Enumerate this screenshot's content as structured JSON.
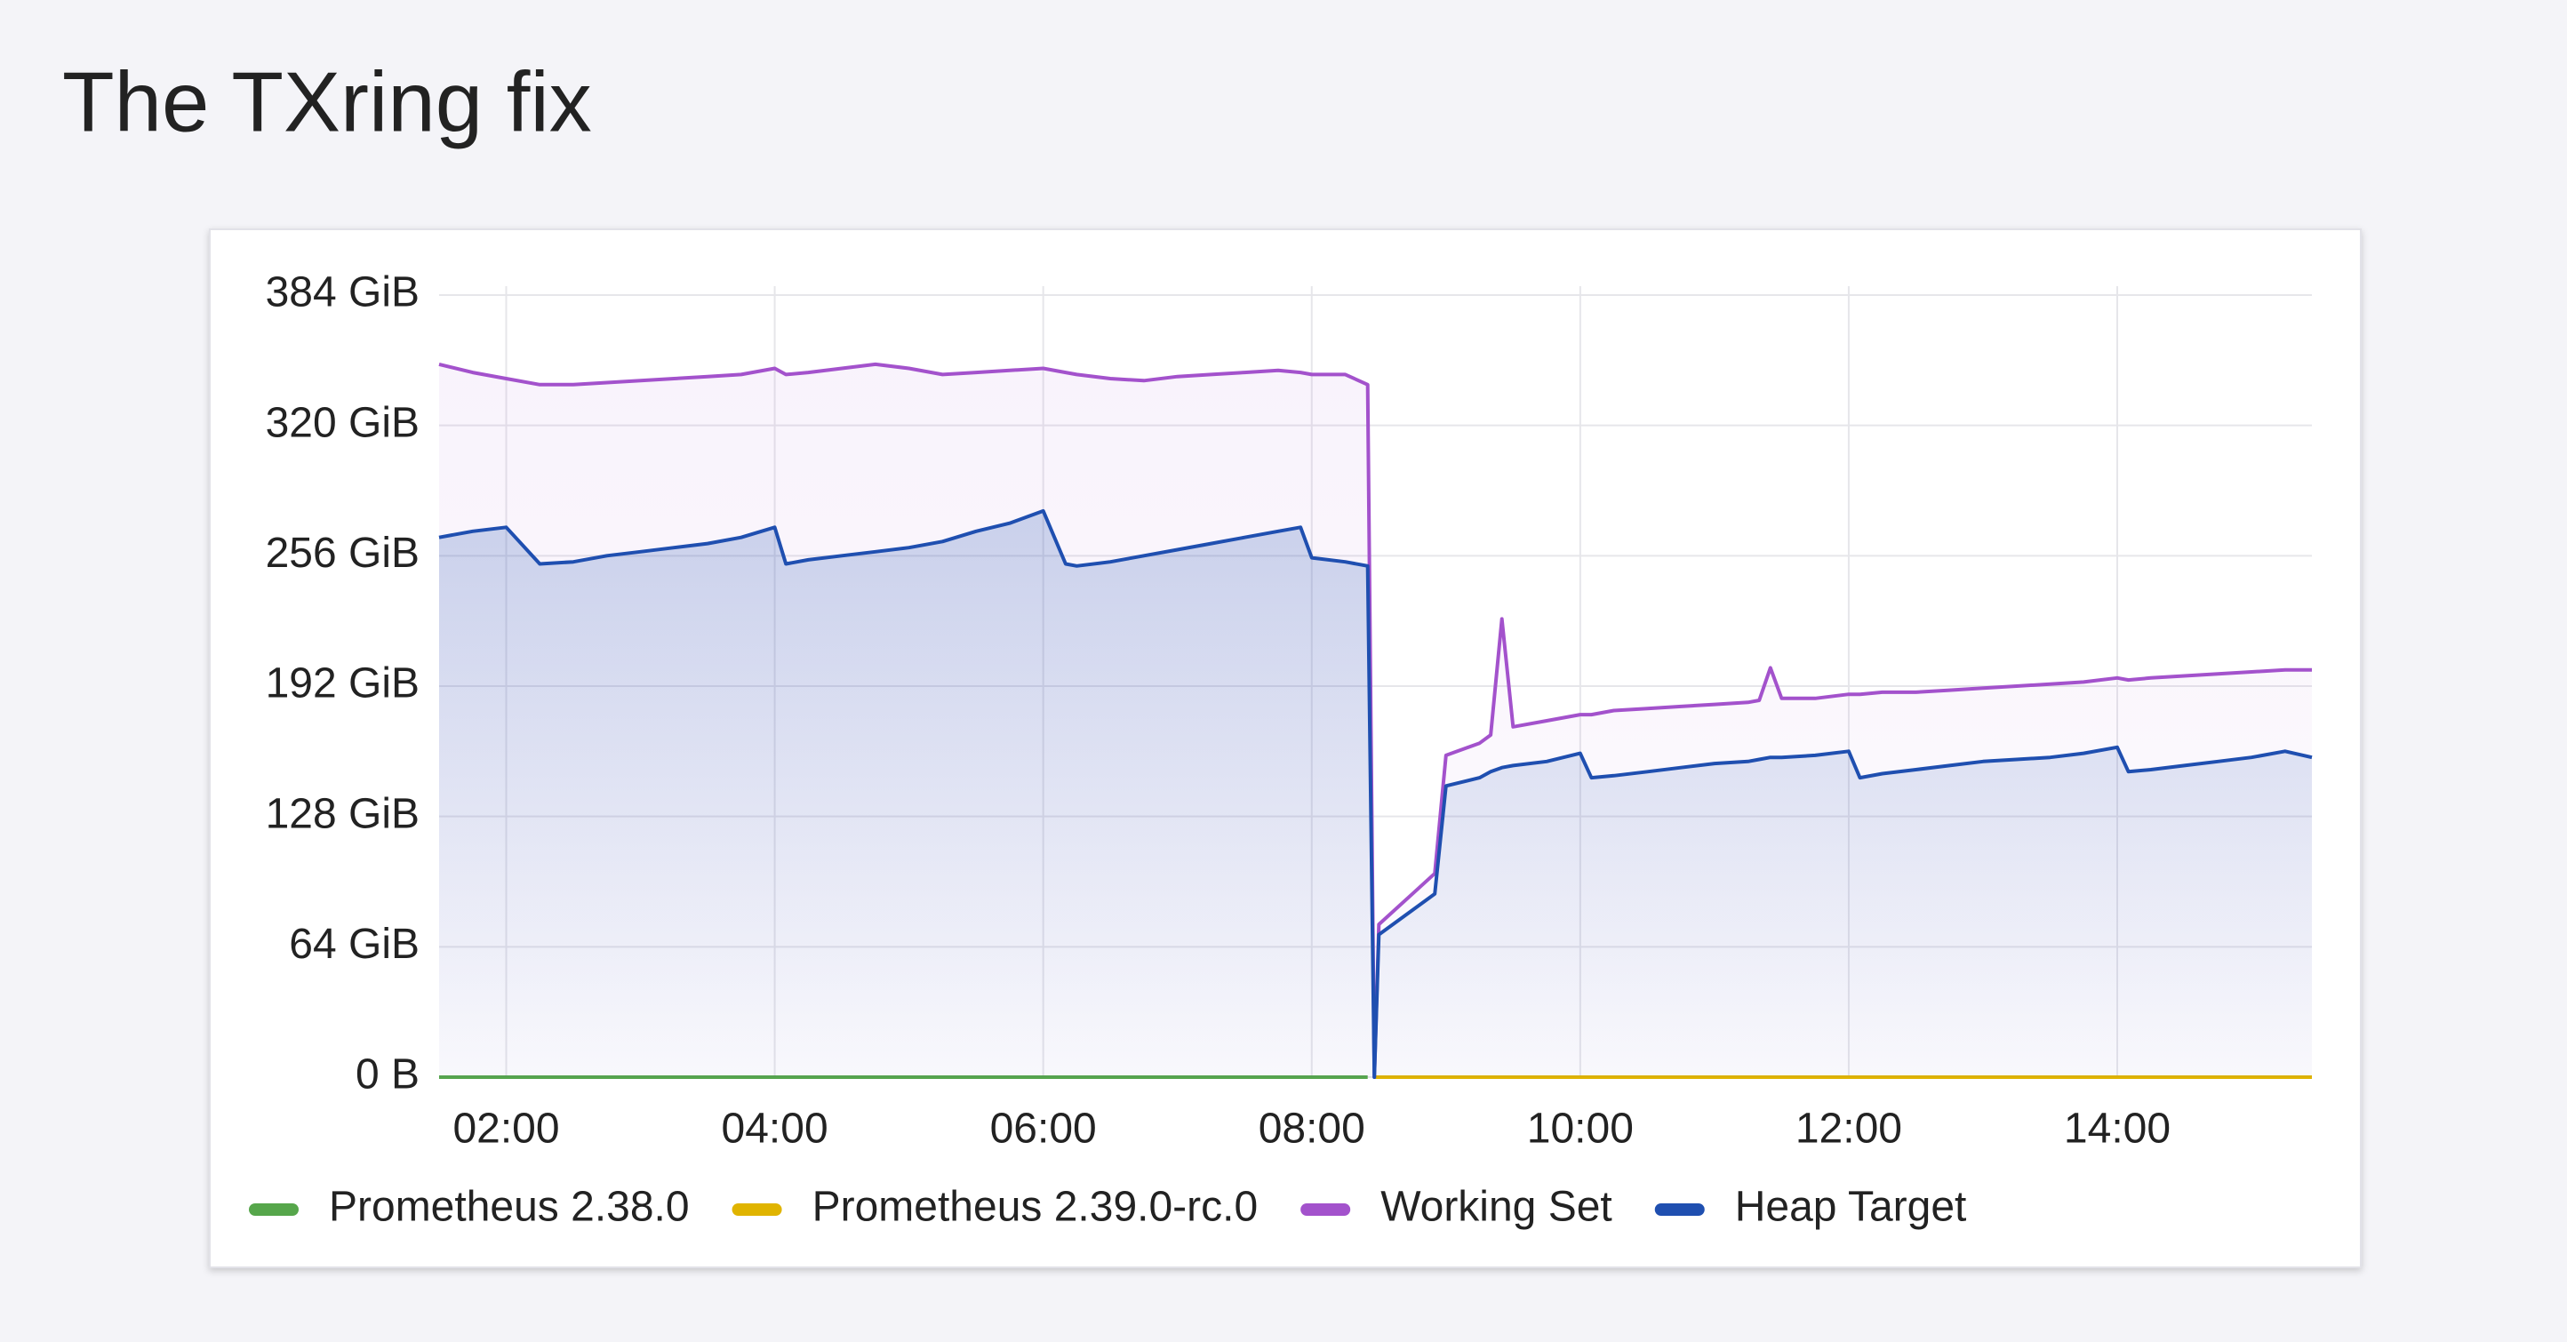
{
  "chart_data": {
    "type": "line",
    "title": "The TXring fix",
    "x": [
      "01:30",
      "01:45",
      "02:00",
      "02:15",
      "02:30",
      "02:45",
      "03:00",
      "03:15",
      "03:30",
      "03:45",
      "04:00",
      "04:05",
      "04:15",
      "04:30",
      "04:45",
      "05:00",
      "05:15",
      "05:30",
      "05:45",
      "06:00",
      "06:10",
      "06:15",
      "06:30",
      "06:45",
      "07:00",
      "07:15",
      "07:30",
      "07:45",
      "07:55",
      "08:00",
      "08:15",
      "08:25",
      "08:28",
      "08:30",
      "08:45",
      "08:55",
      "09:00",
      "09:15",
      "09:20",
      "09:25",
      "09:30",
      "09:45",
      "10:00",
      "10:05",
      "10:15",
      "10:30",
      "10:45",
      "11:00",
      "11:15",
      "11:20",
      "11:25",
      "11:30",
      "11:45",
      "12:00",
      "12:05",
      "12:15",
      "12:30",
      "12:45",
      "13:00",
      "13:15",
      "13:30",
      "13:45",
      "14:00",
      "14:05",
      "14:15",
      "14:30",
      "14:45",
      "15:00",
      "15:15",
      "15:27"
    ],
    "series": [
      {
        "name": "Prometheus 2.38.0",
        "color": "#56a64b",
        "fill": false,
        "values": [
          0,
          0,
          0,
          0,
          0,
          0,
          0,
          0,
          0,
          0,
          0,
          0,
          0,
          0,
          0,
          0,
          0,
          0,
          0,
          0,
          0,
          0,
          0,
          0,
          0,
          0,
          0,
          0,
          0,
          0,
          0,
          0,
          null,
          null,
          null,
          null,
          null,
          null,
          null,
          null,
          null,
          null,
          null,
          null,
          null,
          null,
          null,
          null,
          null,
          null,
          null,
          null,
          null,
          null,
          null,
          null,
          null,
          null,
          null,
          null,
          null,
          null,
          null,
          null,
          null,
          null,
          null,
          null,
          null,
          null
        ]
      },
      {
        "name": "Prometheus 2.39.0-rc.0",
        "color": "#e0b400",
        "fill": false,
        "values": [
          null,
          null,
          null,
          null,
          null,
          null,
          null,
          null,
          null,
          null,
          null,
          null,
          null,
          null,
          null,
          null,
          null,
          null,
          null,
          null,
          null,
          null,
          null,
          null,
          null,
          null,
          null,
          null,
          null,
          null,
          null,
          null,
          0,
          0,
          0,
          0,
          0,
          0,
          0,
          0,
          0,
          0,
          0,
          0,
          0,
          0,
          0,
          0,
          0,
          0,
          0,
          0,
          0,
          0,
          0,
          0,
          0,
          0,
          0,
          0,
          0,
          0,
          0,
          0,
          0,
          0,
          0,
          0,
          0,
          0
        ]
      },
      {
        "name": "Working Set",
        "color": "#a352cc",
        "fill": true,
        "values": [
          350,
          346,
          343,
          340,
          340,
          341,
          342,
          343,
          344,
          345,
          348,
          345,
          346,
          348,
          350,
          348,
          345,
          346,
          347,
          348,
          346,
          345,
          343,
          342,
          344,
          345,
          346,
          347,
          346,
          345,
          345,
          340,
          0,
          75,
          90,
          100,
          158,
          164,
          168,
          225,
          172,
          175,
          178,
          178,
          180,
          181,
          182,
          183,
          184,
          185,
          201,
          186,
          186,
          188,
          188,
          189,
          189,
          190,
          191,
          192,
          193,
          194,
          196,
          195,
          196,
          197,
          198,
          199,
          200,
          200
        ]
      },
      {
        "name": "Heap Target",
        "color": "#1f4fb0",
        "fill": true,
        "values": [
          265,
          268,
          270,
          252,
          253,
          256,
          258,
          260,
          262,
          265,
          270,
          252,
          254,
          256,
          258,
          260,
          263,
          268,
          272,
          278,
          252,
          251,
          253,
          256,
          259,
          262,
          265,
          268,
          270,
          255,
          253,
          251,
          0,
          70,
          82,
          90,
          143,
          147,
          150,
          152,
          153,
          155,
          159,
          147,
          148,
          150,
          152,
          154,
          155,
          156,
          157,
          157,
          158,
          160,
          147,
          149,
          151,
          153,
          155,
          156,
          157,
          159,
          162,
          150,
          151,
          153,
          155,
          157,
          160,
          157
        ]
      }
    ],
    "xlim": [
      "01:30",
      "15:27"
    ],
    "xticks": [
      "02:00",
      "04:00",
      "06:00",
      "08:00",
      "10:00",
      "12:00",
      "14:00"
    ],
    "ylim": [
      0,
      384
    ],
    "yticks": [
      {
        "value": 0,
        "label": "0 B"
      },
      {
        "value": 64,
        "label": "64 GiB"
      },
      {
        "value": 128,
        "label": "128 GiB"
      },
      {
        "value": 192,
        "label": "192 GiB"
      },
      {
        "value": 256,
        "label": "256 GiB"
      },
      {
        "value": 320,
        "label": "320 GiB"
      },
      {
        "value": 384,
        "label": "384 GiB"
      }
    ],
    "grid": true,
    "legend": "bottom"
  }
}
